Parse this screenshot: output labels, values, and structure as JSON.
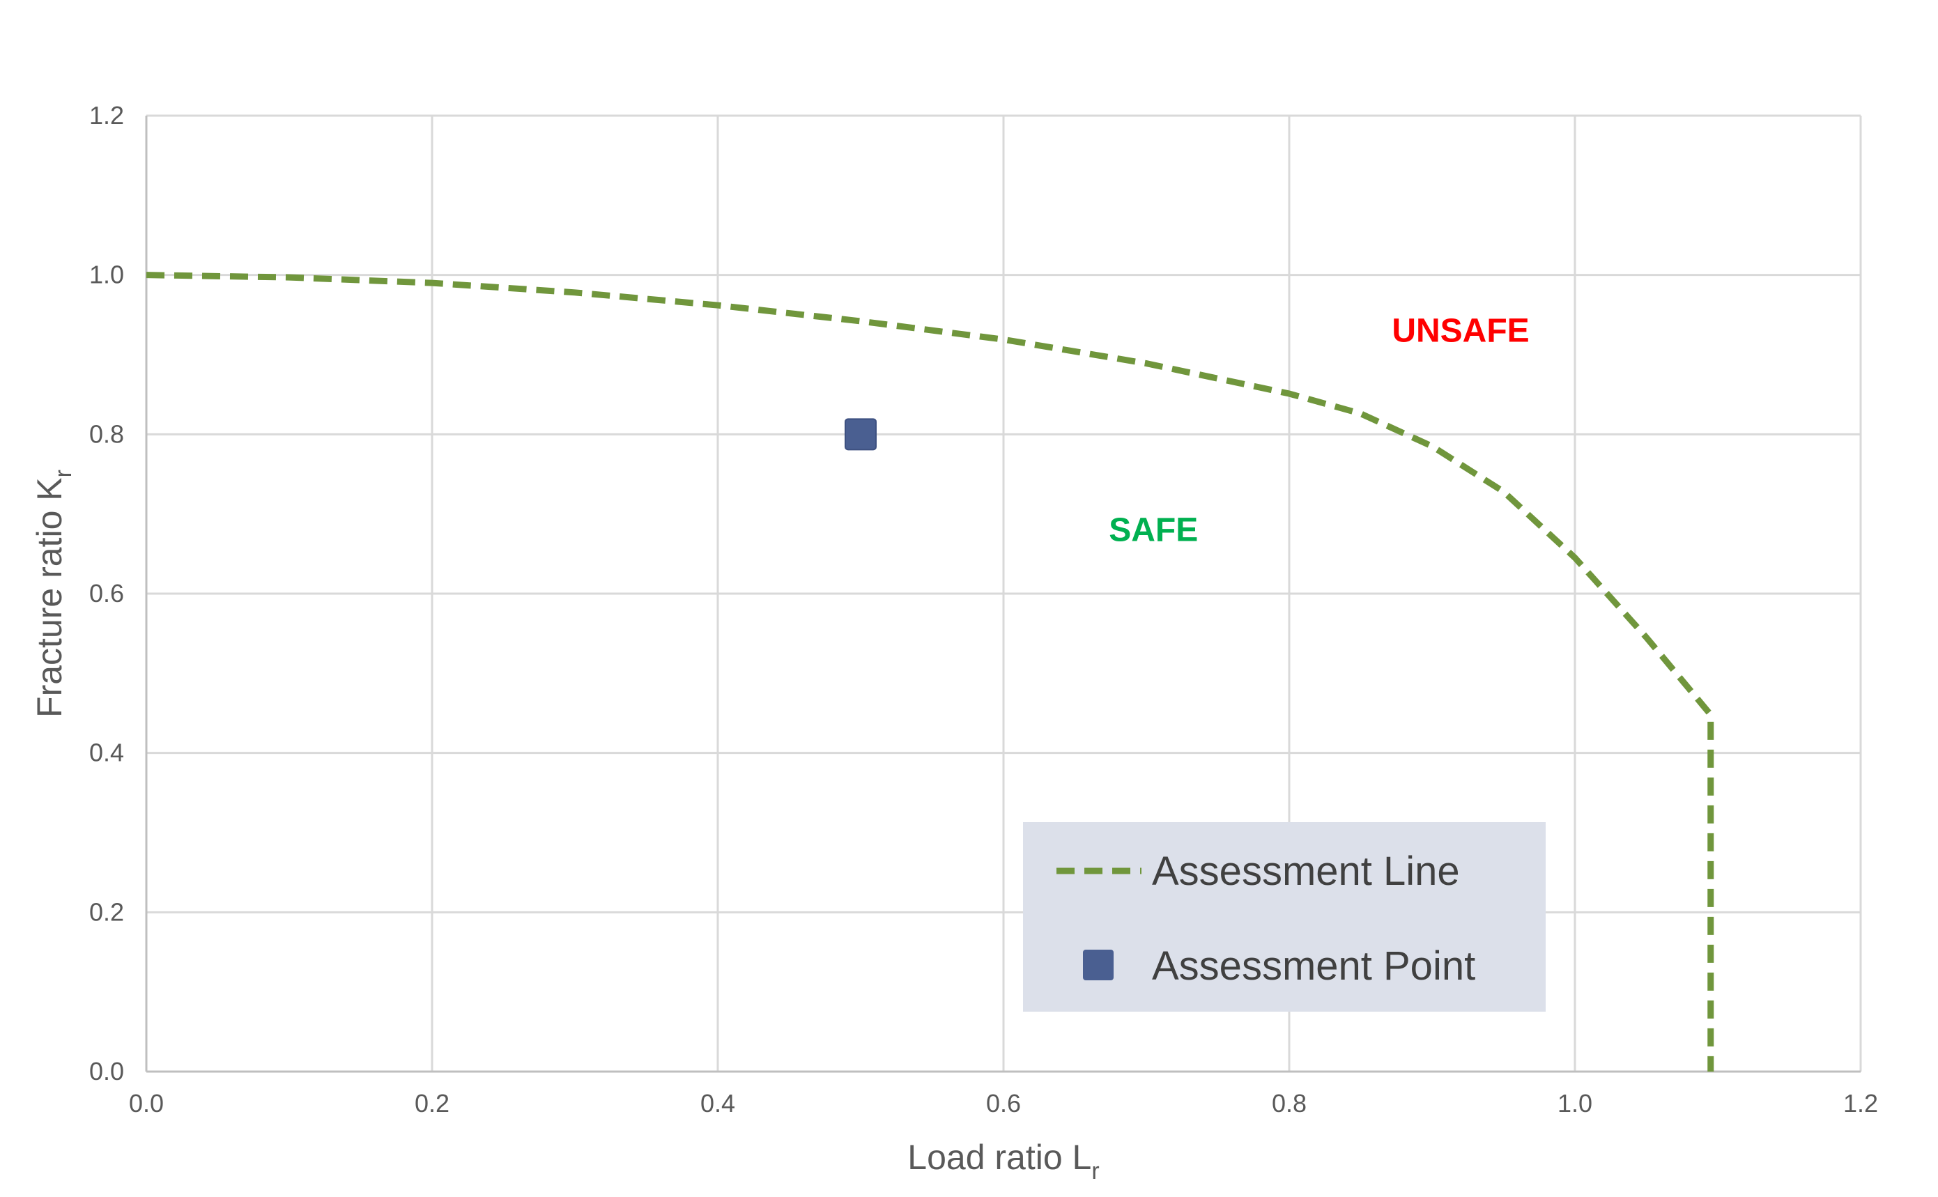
{
  "chart_data": {
    "type": "line",
    "title": "",
    "xlabel": "Load ratio L",
    "xlabel_sub": "r",
    "ylabel": "Fracture ratio K",
    "ylabel_sub": "r",
    "xlim": [
      0,
      1.2
    ],
    "ylim": [
      0,
      1.2
    ],
    "x_ticks": [
      "0.0",
      "0.2",
      "0.4",
      "0.6",
      "0.8",
      "1.0",
      "1.2"
    ],
    "y_ticks": [
      "0.0",
      "0.2",
      "0.4",
      "0.6",
      "0.8",
      "1.0",
      "1.2"
    ],
    "grid": true,
    "legend_position": "bottom-right",
    "series": [
      {
        "name": "Assessment Line",
        "style": "dashed-line",
        "color": "#70963c",
        "x": [
          0.0,
          0.1,
          0.2,
          0.3,
          0.4,
          0.5,
          0.6,
          0.7,
          0.8,
          0.85,
          0.9,
          0.95,
          1.0,
          1.05,
          1.095,
          1.095
        ],
        "y": [
          1.0,
          0.997,
          0.99,
          0.978,
          0.962,
          0.942,
          0.919,
          0.889,
          0.851,
          0.826,
          0.785,
          0.728,
          0.645,
          0.545,
          0.448,
          0.0
        ]
      },
      {
        "name": "Assessment Point",
        "style": "square-marker",
        "color": "#4a5f91",
        "x": [
          0.5
        ],
        "y": [
          0.8
        ]
      }
    ],
    "annotations": [
      {
        "text": "UNSAFE",
        "x": 0.92,
        "y": 0.93,
        "color": "#ff0000"
      },
      {
        "text": "SAFE",
        "x": 0.705,
        "y": 0.68,
        "color": "#00b050"
      }
    ]
  }
}
